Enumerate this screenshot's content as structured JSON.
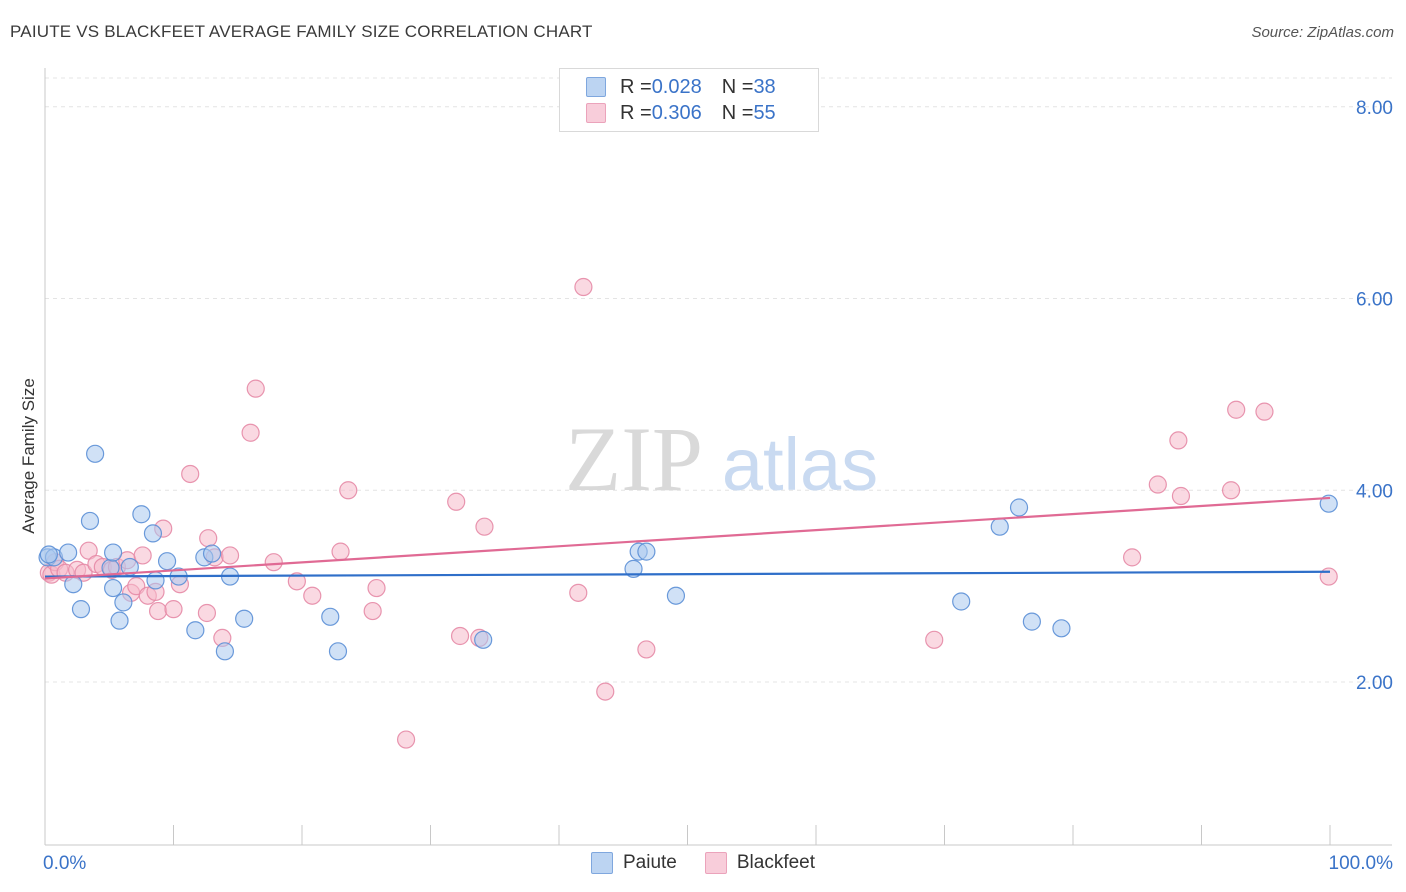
{
  "title": "PAIUTE VS BLACKFEET AVERAGE FAMILY SIZE CORRELATION CHART",
  "source": "Source: ZipAtlas.com",
  "watermark": {
    "zip": "ZIP",
    "atlas": "atlas"
  },
  "legend": {
    "rows": [
      {
        "r_label": "R = ",
        "r_value": "0.028",
        "n_label": "N = ",
        "n_value": "38"
      },
      {
        "r_label": "R = ",
        "r_value": "0.306",
        "n_label": "N = ",
        "n_value": "55"
      }
    ]
  },
  "colors": {
    "paiute_fill": "#a9c8ee",
    "paiute_stroke": "#5b8fd6",
    "paiute_line": "#2f6fc9",
    "blackfeet_fill": "#f5b9cb",
    "blackfeet_stroke": "#e58aa6",
    "blackfeet_line": "#e06a94",
    "tick_label": "#3a73c8"
  },
  "chart_data": {
    "type": "scatter",
    "title": "PAIUTE VS BLACKFEET AVERAGE FAMILY SIZE CORRELATION CHART",
    "xlabel": "",
    "ylabel": "Average Family Size",
    "xlim": [
      0,
      100
    ],
    "ylim": [
      0.3,
      8.3
    ],
    "x_tick_labels": [
      "0.0%",
      "100.0%"
    ],
    "y_ticks": [
      2,
      4,
      6,
      8
    ],
    "y_tick_labels": [
      "2.00",
      "4.00",
      "6.00",
      "8.00"
    ],
    "grid": true,
    "legend_position": "bottom-center",
    "series": [
      {
        "name": "Paiute",
        "trend": [
          [
            0,
            3.1
          ],
          [
            100,
            3.15
          ]
        ],
        "points": [
          [
            0.2,
            3.3
          ],
          [
            0.7,
            3.3
          ],
          [
            1.8,
            3.35
          ],
          [
            2.2,
            3.02
          ],
          [
            2.8,
            2.76
          ],
          [
            3.5,
            3.68
          ],
          [
            3.9,
            4.38
          ],
          [
            5.1,
            3.19
          ],
          [
            5.3,
            2.98
          ],
          [
            5.3,
            3.35
          ],
          [
            5.8,
            2.64
          ],
          [
            6.1,
            2.83
          ],
          [
            6.6,
            3.2
          ],
          [
            7.5,
            3.75
          ],
          [
            8.4,
            3.55
          ],
          [
            8.6,
            3.06
          ],
          [
            9.5,
            3.26
          ],
          [
            10.4,
            3.1
          ],
          [
            11.7,
            2.54
          ],
          [
            12.4,
            3.3
          ],
          [
            13.0,
            3.34
          ],
          [
            14.0,
            2.32
          ],
          [
            14.4,
            3.1
          ],
          [
            15.5,
            2.66
          ],
          [
            22.2,
            2.68
          ],
          [
            22.8,
            2.32
          ],
          [
            34.1,
            2.44
          ],
          [
            45.8,
            3.18
          ],
          [
            46.2,
            3.36
          ],
          [
            46.8,
            3.36
          ],
          [
            49.1,
            2.9
          ],
          [
            71.3,
            2.84
          ],
          [
            74.3,
            3.62
          ],
          [
            75.8,
            3.82
          ],
          [
            76.8,
            2.63
          ],
          [
            79.1,
            2.56
          ],
          [
            99.9,
            3.86
          ],
          [
            0.3,
            3.33
          ]
        ]
      },
      {
        "name": "Blackfeet",
        "trend": [
          [
            0,
            3.08
          ],
          [
            100,
            3.92
          ]
        ],
        "points": [
          [
            0.3,
            3.14
          ],
          [
            0.5,
            3.12
          ],
          [
            0.8,
            3.25
          ],
          [
            1.1,
            3.18
          ],
          [
            1.6,
            3.14
          ],
          [
            2.5,
            3.17
          ],
          [
            3.0,
            3.14
          ],
          [
            3.4,
            3.37
          ],
          [
            4.0,
            3.23
          ],
          [
            4.5,
            3.2
          ],
          [
            5.2,
            3.17
          ],
          [
            5.6,
            3.2
          ],
          [
            6.4,
            3.27
          ],
          [
            6.7,
            2.93
          ],
          [
            7.1,
            3.0
          ],
          [
            7.6,
            3.32
          ],
          [
            8.0,
            2.9
          ],
          [
            8.6,
            2.94
          ],
          [
            8.8,
            2.74
          ],
          [
            9.2,
            3.6
          ],
          [
            10.0,
            2.76
          ],
          [
            10.5,
            3.02
          ],
          [
            11.3,
            4.17
          ],
          [
            12.6,
            2.72
          ],
          [
            12.7,
            3.5
          ],
          [
            13.2,
            3.3
          ],
          [
            13.8,
            2.46
          ],
          [
            14.4,
            3.32
          ],
          [
            16.0,
            4.6
          ],
          [
            16.4,
            5.06
          ],
          [
            17.8,
            3.25
          ],
          [
            19.6,
            3.05
          ],
          [
            20.8,
            2.9
          ],
          [
            23.0,
            3.36
          ],
          [
            23.6,
            4.0
          ],
          [
            25.5,
            2.74
          ],
          [
            25.8,
            2.98
          ],
          [
            28.1,
            1.4
          ],
          [
            32.0,
            3.88
          ],
          [
            32.3,
            2.48
          ],
          [
            33.8,
            2.46
          ],
          [
            34.2,
            3.62
          ],
          [
            41.5,
            2.93
          ],
          [
            41.9,
            6.12
          ],
          [
            43.6,
            1.9
          ],
          [
            46.8,
            2.34
          ],
          [
            69.2,
            2.44
          ],
          [
            84.6,
            3.3
          ],
          [
            86.6,
            4.06
          ],
          [
            88.4,
            3.94
          ],
          [
            88.2,
            4.52
          ],
          [
            92.3,
            4.0
          ],
          [
            92.7,
            4.84
          ],
          [
            94.9,
            4.82
          ],
          [
            99.9,
            3.1
          ]
        ]
      }
    ]
  }
}
